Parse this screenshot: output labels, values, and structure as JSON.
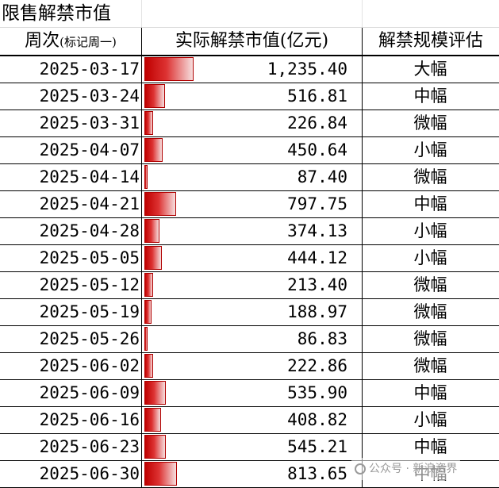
{
  "title": "限售解禁市值",
  "header": {
    "week": "周次",
    "week_note": "(标记周一)",
    "value": "实际解禁市值(亿元)",
    "scale": "解禁规模评估"
  },
  "chart_data": {
    "type": "table",
    "columns": [
      "周次(标记周一)",
      "实际解禁市值(亿元)",
      "解禁规模评估"
    ],
    "rows": [
      {
        "week": "2025-03-17",
        "value": 1235.4,
        "value_text": "1,235.40",
        "scale": "大幅"
      },
      {
        "week": "2025-03-24",
        "value": 516.81,
        "value_text": "516.81",
        "scale": "中幅"
      },
      {
        "week": "2025-03-31",
        "value": 226.84,
        "value_text": "226.84",
        "scale": "微幅"
      },
      {
        "week": "2025-04-07",
        "value": 450.64,
        "value_text": "450.64",
        "scale": "小幅"
      },
      {
        "week": "2025-04-14",
        "value": 87.4,
        "value_text": "87.40",
        "scale": "微幅"
      },
      {
        "week": "2025-04-21",
        "value": 797.75,
        "value_text": "797.75",
        "scale": "中幅"
      },
      {
        "week": "2025-04-28",
        "value": 374.13,
        "value_text": "374.13",
        "scale": "小幅"
      },
      {
        "week": "2025-05-05",
        "value": 444.12,
        "value_text": "444.12",
        "scale": "小幅"
      },
      {
        "week": "2025-05-12",
        "value": 213.4,
        "value_text": "213.40",
        "scale": "微幅"
      },
      {
        "week": "2025-05-19",
        "value": 188.97,
        "value_text": "188.97",
        "scale": "微幅"
      },
      {
        "week": "2025-05-26",
        "value": 86.83,
        "value_text": "86.83",
        "scale": "微幅"
      },
      {
        "week": "2025-06-02",
        "value": 222.86,
        "value_text": "222.86",
        "scale": "微幅"
      },
      {
        "week": "2025-06-09",
        "value": 535.9,
        "value_text": "535.90",
        "scale": "中幅"
      },
      {
        "week": "2025-06-16",
        "value": 408.82,
        "value_text": "408.82",
        "scale": "小幅"
      },
      {
        "week": "2025-06-23",
        "value": 545.21,
        "value_text": "545.21",
        "scale": "中幅"
      },
      {
        "week": "2025-06-30",
        "value": 813.65,
        "value_text": "813.65",
        "scale": "中幅"
      }
    ],
    "bar_color": "#c00000"
  },
  "watermark": {
    "icon": "wechat-icon",
    "text": "公众号 · 新浪资界"
  }
}
